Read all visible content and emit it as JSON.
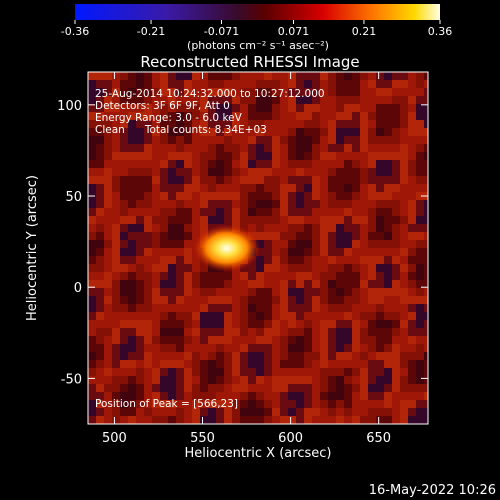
{
  "colorbar": {
    "ticks": [
      "-0.36",
      "-0.21",
      "-0.071",
      "0.071",
      "0.21",
      "0.36"
    ],
    "tick_values": [
      -0.36,
      -0.21,
      -0.071,
      0.071,
      0.21,
      0.36
    ],
    "unit_label": "(photons cm⁻² s⁻¹ asec⁻²)",
    "range": [
      -0.36,
      0.36
    ]
  },
  "chart_data": {
    "type": "heatmap",
    "title": "Reconstructed RHESSI Image",
    "xlabel": "Heliocentric X (arcsec)",
    "ylabel": "Heliocentric Y (arcsec)",
    "xlim": [
      485,
      678
    ],
    "ylim": [
      -75,
      118
    ],
    "x_ticks": [
      500,
      550,
      600,
      650
    ],
    "y_ticks": [
      -50,
      0,
      50,
      100
    ],
    "peak": [
      566,
      23
    ],
    "color_range": [
      -0.36,
      0.36
    ]
  },
  "info": {
    "line1": "25-Aug-2014 10:24:32.000 to 10:27:12.000",
    "line2": "Detectors: 3F 6F 9F, Att 0",
    "line3": "Energy Range: 3.0 - 6.0 keV",
    "line4": "Clean      Total counts: 8.34E+03",
    "peak_label": "Position of Peak = [566,23]"
  },
  "footer": {
    "timestamp": "16-May-2022 10:26"
  }
}
